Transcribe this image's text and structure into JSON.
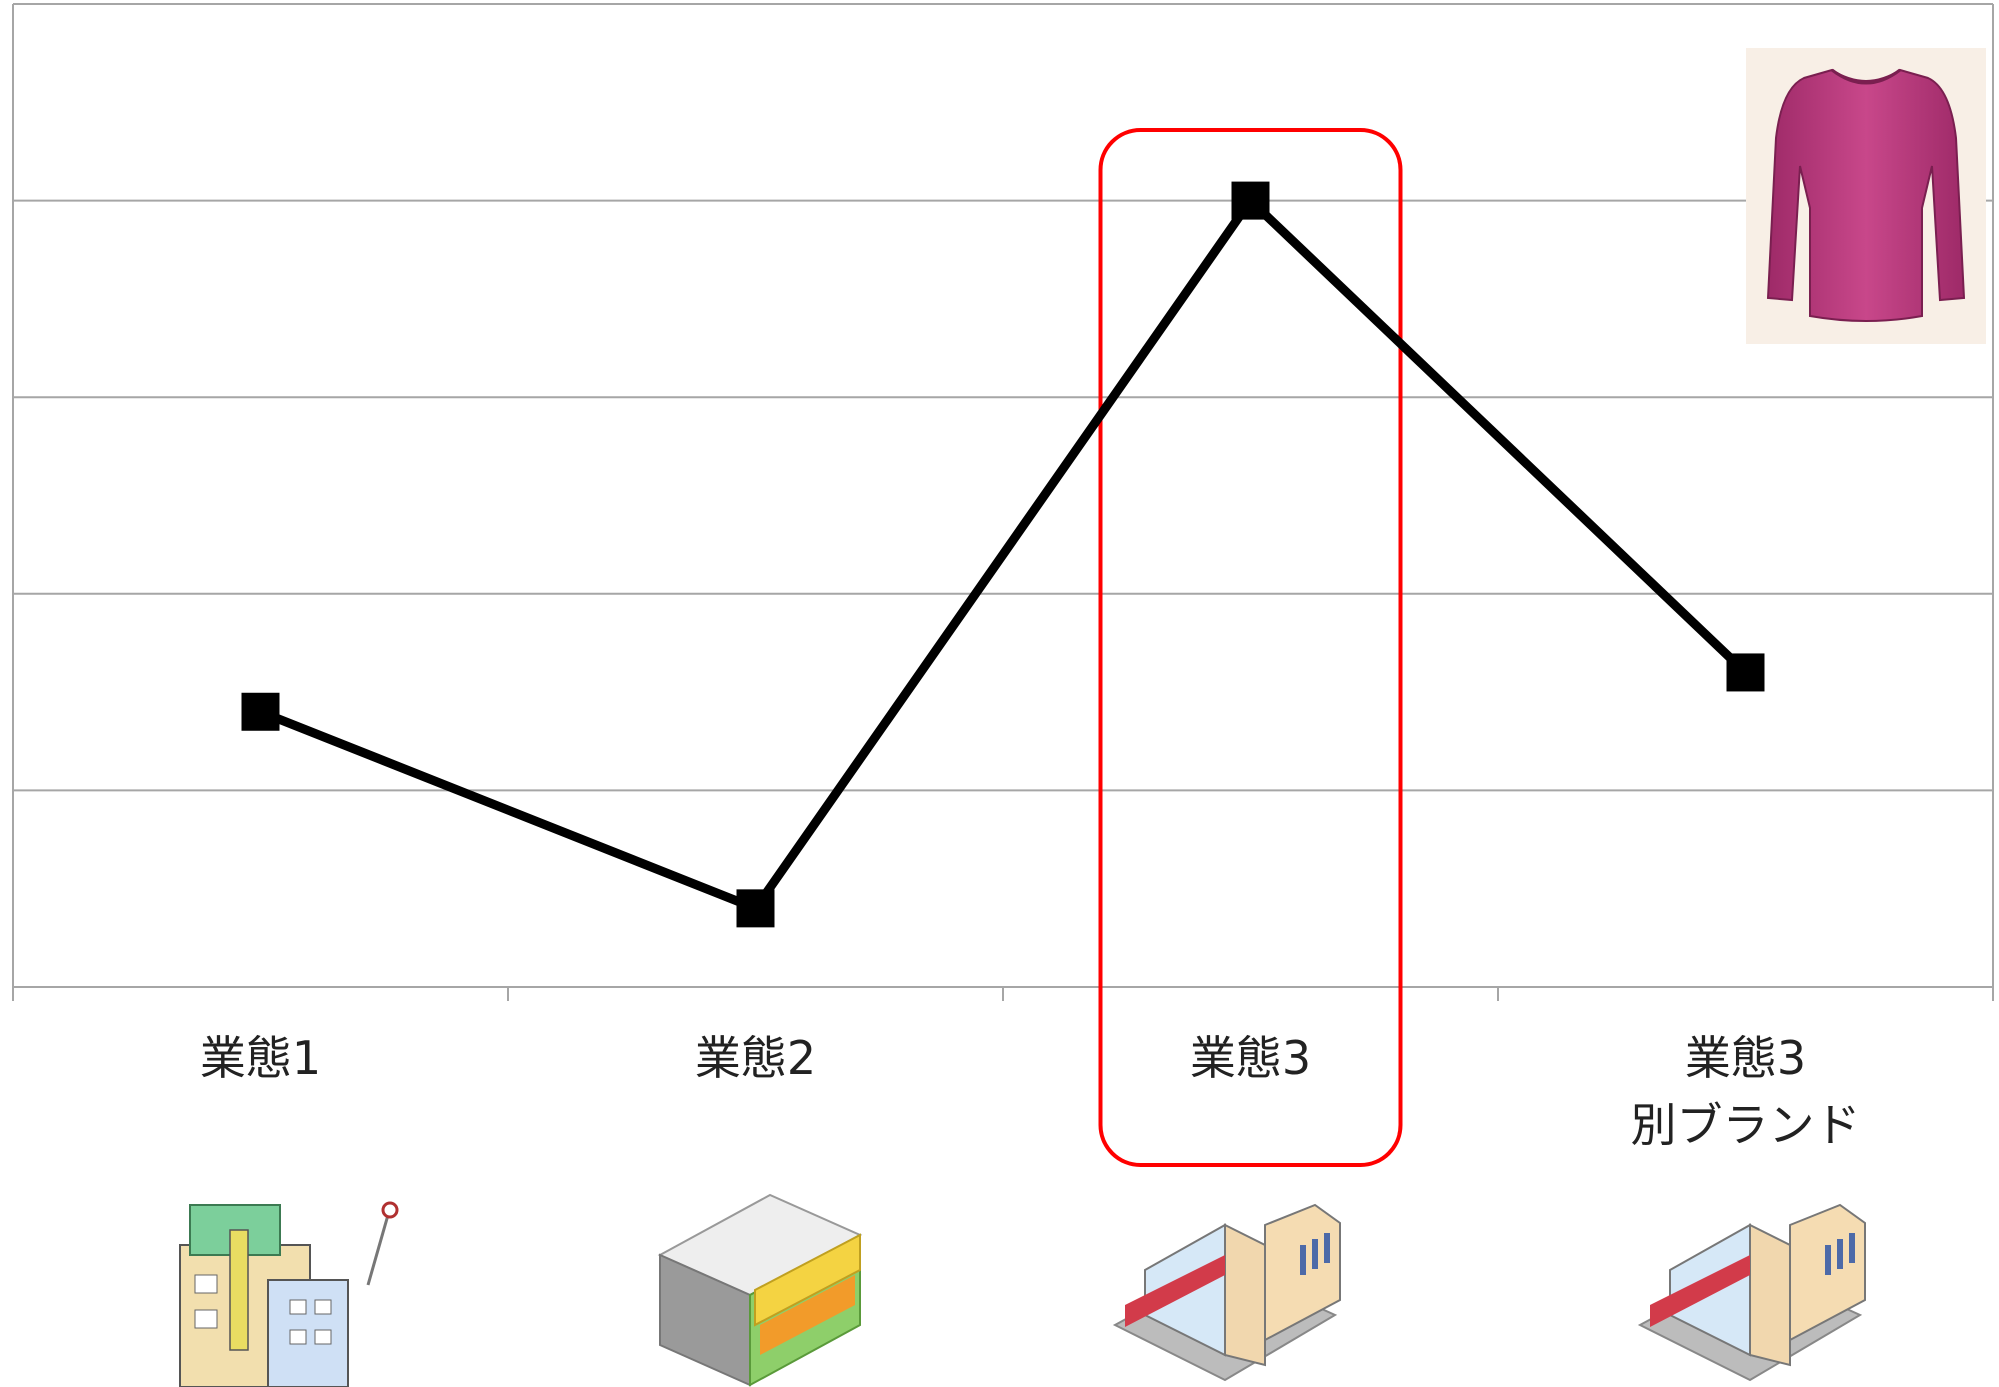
{
  "chart_data": {
    "type": "line",
    "categories": [
      "業態1",
      "業態2",
      "業態3",
      "業態3\n別ブランド"
    ],
    "series": [
      {
        "values": [
          1.4,
          0.4,
          4.0,
          1.6
        ]
      }
    ],
    "ylim": [
      0,
      5
    ],
    "grid": true,
    "highlight_category": "業態3",
    "colors": {
      "line": "#000000",
      "grid": "#a6a6a6",
      "highlight": "#ff0000"
    }
  },
  "icons": [
    "office-building-icon",
    "shop-icon",
    "shopping-mall-icon",
    "shopping-mall-icon",
    "pink-top-icon"
  ]
}
